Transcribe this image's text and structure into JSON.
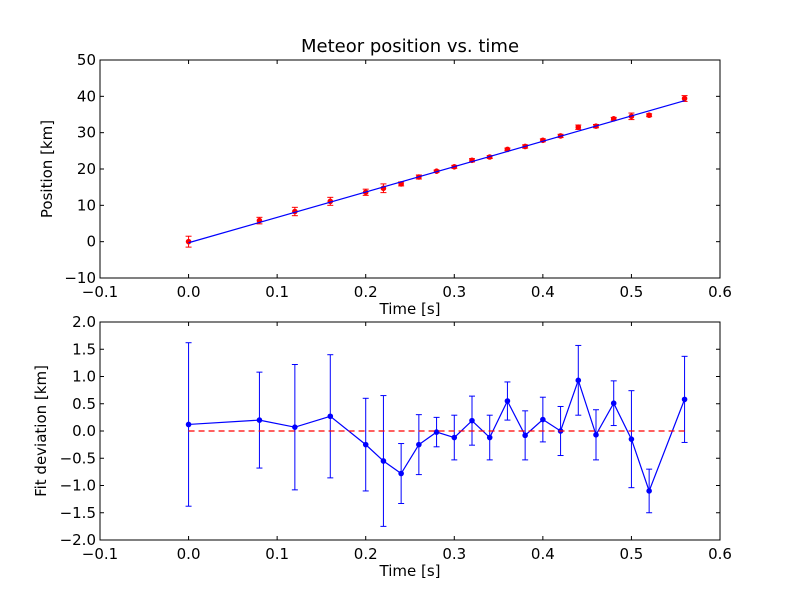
{
  "chart_data": [
    {
      "type": "scatter",
      "title": "Meteor position vs. time",
      "xlabel": "Time [s]",
      "ylabel": "Position [km]",
      "xlim": [
        -0.1,
        0.6
      ],
      "ylim": [
        -10,
        50
      ],
      "xticks": [
        "−0.1",
        "0.0",
        "0.1",
        "0.2",
        "0.3",
        "0.4",
        "0.5",
        "0.6"
      ],
      "yticks": [
        "−10",
        "0",
        "10",
        "20",
        "30",
        "40",
        "50"
      ],
      "grid": false,
      "series": [
        {
          "kind": "errorbar-points",
          "color": "#ff0000",
          "x": [
            0.0,
            0.08,
            0.12,
            0.16,
            0.2,
            0.22,
            0.24,
            0.26,
            0.28,
            0.3,
            0.32,
            0.34,
            0.36,
            0.38,
            0.4,
            0.42,
            0.44,
            0.46,
            0.48,
            0.5,
            0.52,
            0.56
          ],
          "y": [
            0.0,
            5.8,
            8.3,
            11.1,
            13.6,
            14.7,
            15.9,
            17.8,
            19.4,
            20.6,
            22.4,
            23.3,
            25.4,
            26.2,
            27.9,
            29.1,
            31.5,
            31.8,
            33.8,
            34.5,
            34.8,
            39.4
          ],
          "yerr": [
            1.5,
            0.9,
            1.15,
            1.1,
            0.85,
            1.2,
            0.55,
            0.55,
            0.3,
            0.4,
            0.45,
            0.4,
            0.35,
            0.45,
            0.4,
            0.45,
            0.6,
            0.45,
            0.4,
            0.9,
            0.4,
            0.8
          ]
        },
        {
          "kind": "fit-line",
          "color": "#0000ff",
          "x": [
            0.0,
            0.56
          ],
          "y": [
            -0.3,
            38.8
          ]
        }
      ]
    },
    {
      "type": "line",
      "xlabel": "Time [s]",
      "ylabel": "Fit deviation [km]",
      "xlim": [
        -0.1,
        0.6
      ],
      "ylim": [
        -2.0,
        2.0
      ],
      "xticks": [
        "−0.1",
        "0.0",
        "0.1",
        "0.2",
        "0.3",
        "0.4",
        "0.5",
        "0.6"
      ],
      "yticks": [
        "−2.0",
        "−1.5",
        "−1.0",
        "−0.5",
        "0.0",
        "0.5",
        "1.0",
        "1.5",
        "2.0"
      ],
      "grid": false,
      "series": [
        {
          "kind": "errorbar-line",
          "color": "#0000ff",
          "x": [
            0.0,
            0.08,
            0.12,
            0.16,
            0.2,
            0.22,
            0.24,
            0.26,
            0.28,
            0.3,
            0.32,
            0.34,
            0.36,
            0.38,
            0.4,
            0.42,
            0.44,
            0.46,
            0.48,
            0.5,
            0.52,
            0.56
          ],
          "y": [
            0.12,
            0.2,
            0.07,
            0.27,
            -0.25,
            -0.55,
            -0.78,
            -0.25,
            -0.02,
            -0.12,
            0.19,
            -0.12,
            0.55,
            -0.08,
            0.21,
            0.0,
            0.93,
            -0.07,
            0.51,
            -0.15,
            -1.1,
            0.58
          ],
          "yerr": [
            1.5,
            0.88,
            1.15,
            1.13,
            0.85,
            1.2,
            0.55,
            0.55,
            0.27,
            0.41,
            0.45,
            0.41,
            0.35,
            0.45,
            0.41,
            0.45,
            0.64,
            0.46,
            0.41,
            0.89,
            0.4,
            0.79
          ]
        },
        {
          "kind": "zero-line",
          "color": "#ff0000",
          "style": "dashed",
          "x": [
            0.0,
            0.56
          ],
          "y": [
            0.0,
            0.0
          ]
        }
      ]
    }
  ]
}
